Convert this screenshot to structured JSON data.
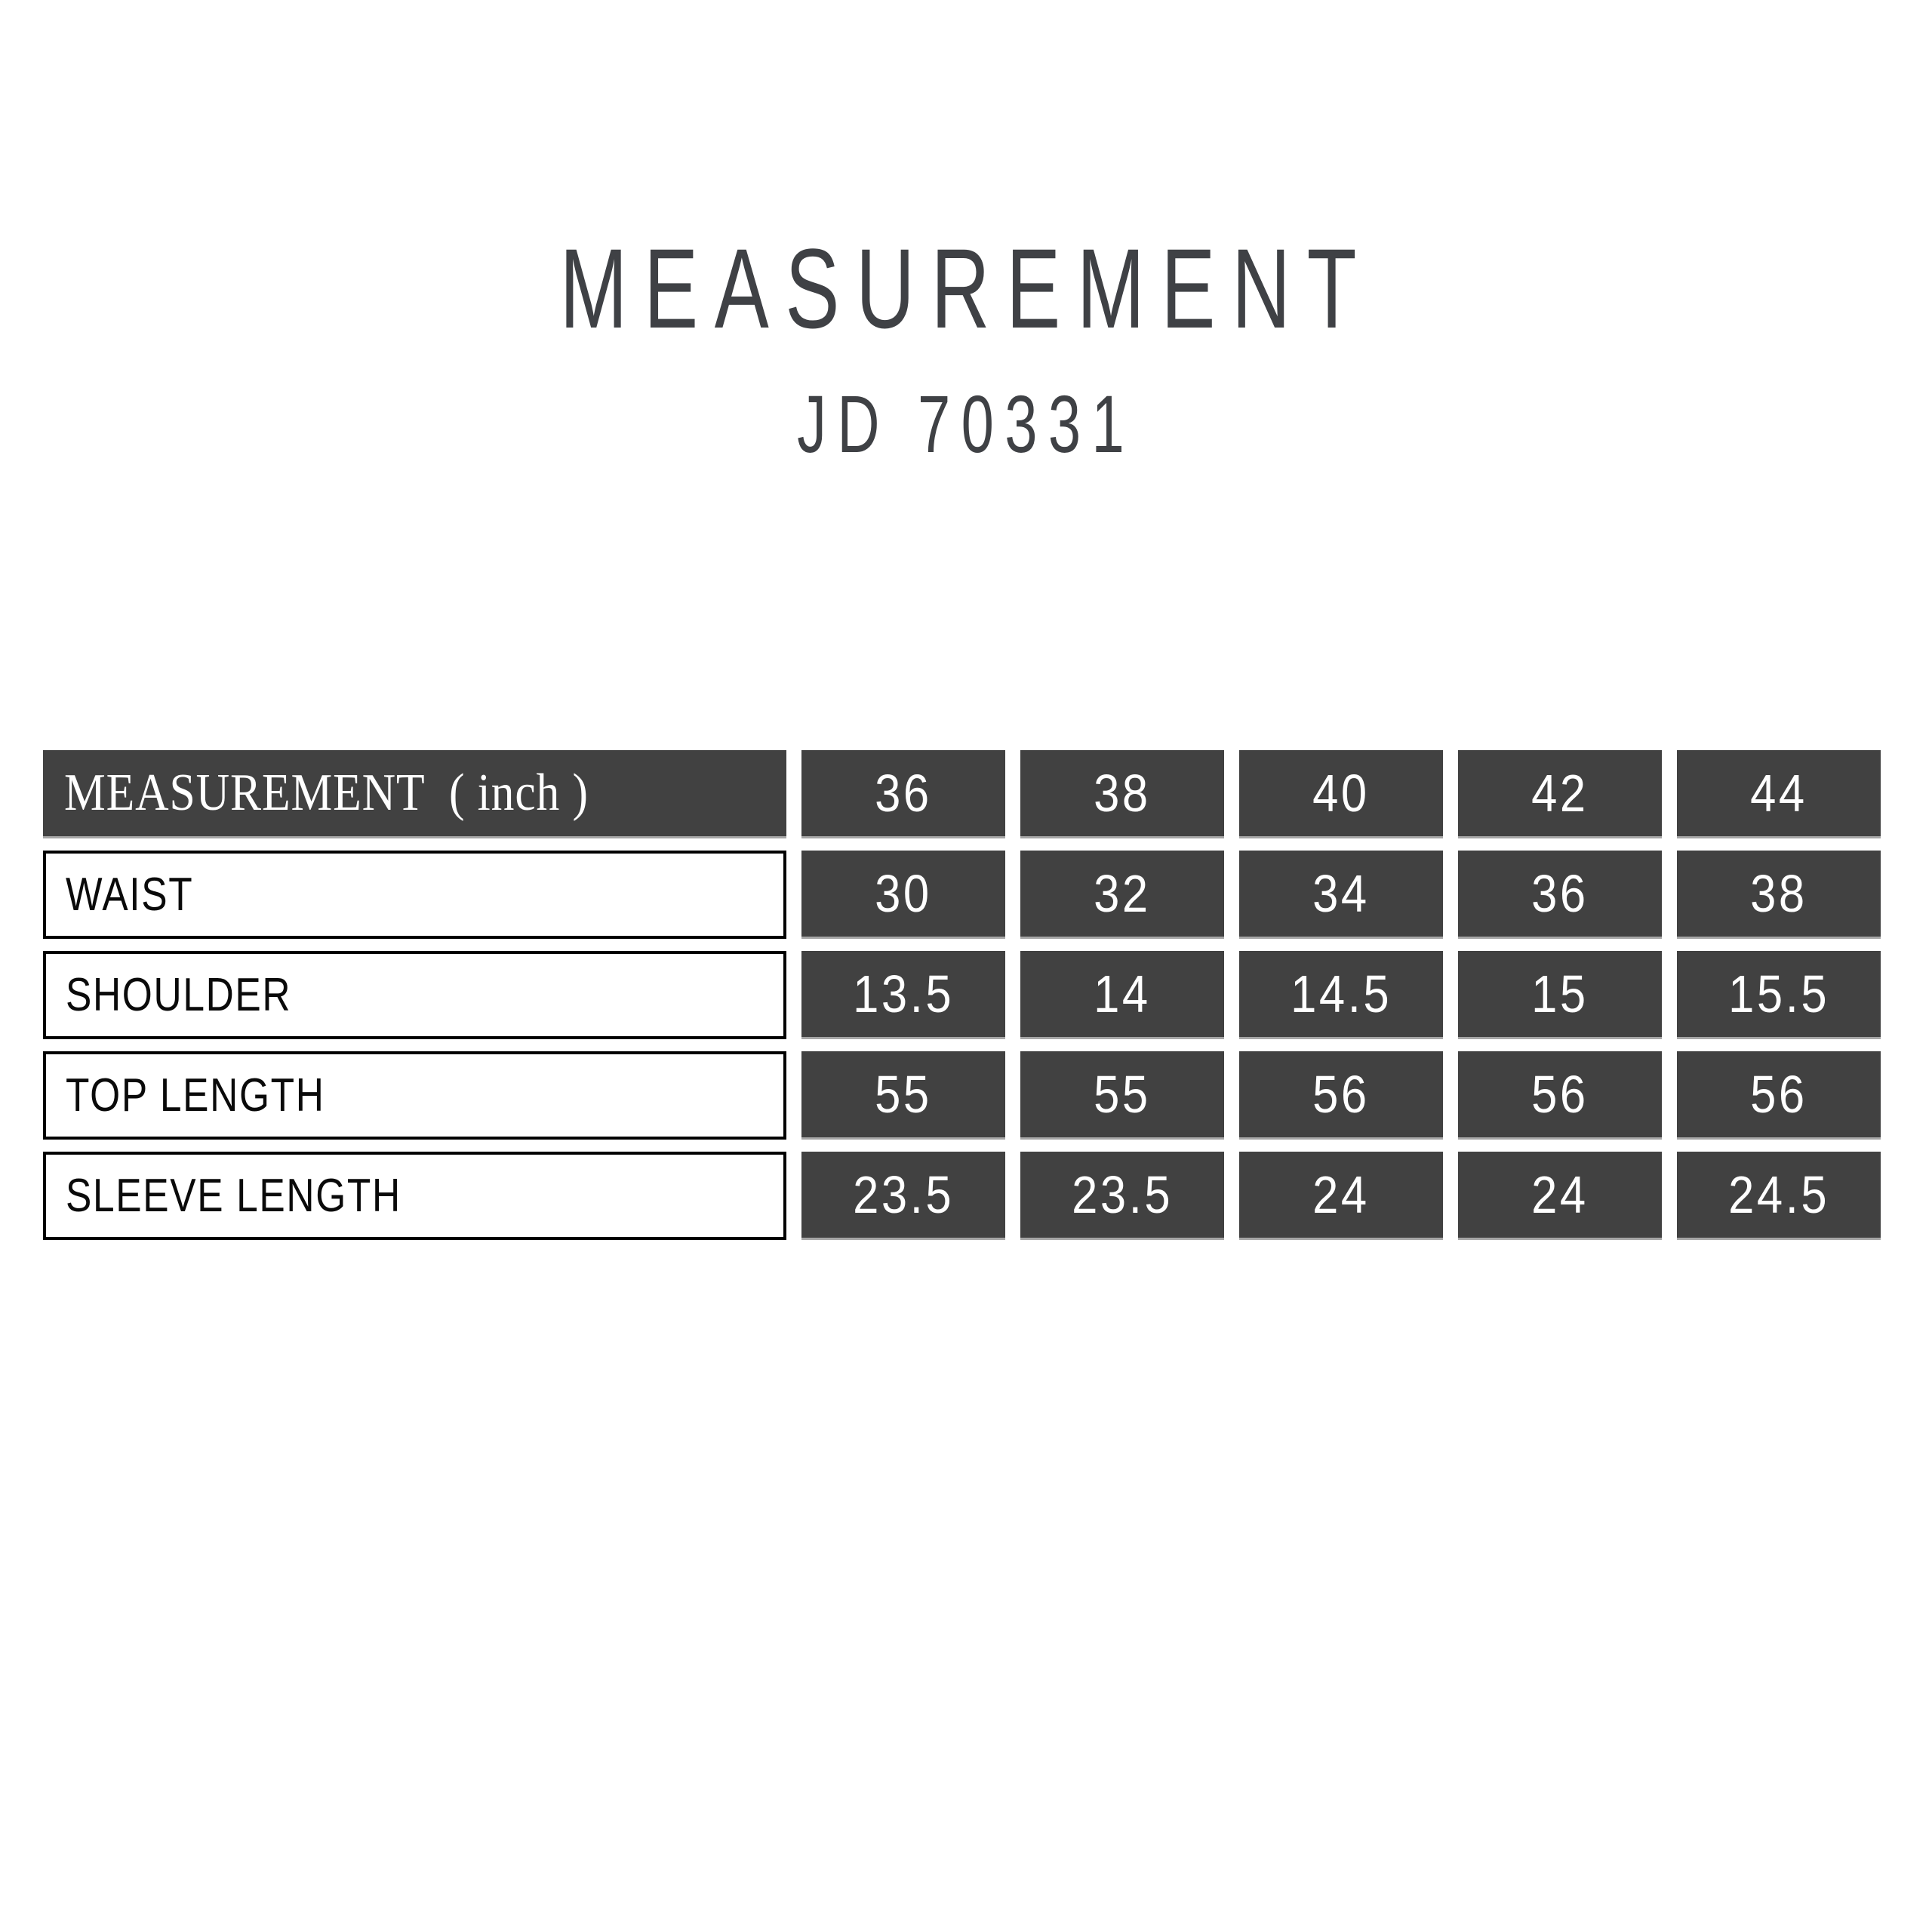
{
  "title": "MEASUREMENT",
  "subtitle": "JD 70331",
  "colors": {
    "page_bg": "#ffffff",
    "dark_cell_bg": "#414141",
    "title_text": "#3f4145",
    "cell_text_light": "#ffffff",
    "label_text": "#0a0a0a",
    "label_cell_border": "#000000",
    "dark_cell_edge": "#a6a6a6"
  },
  "chart_data": {
    "type": "table",
    "title": "MEASUREMENT",
    "subtitle": "JD 70331",
    "unit": "inch",
    "header": {
      "label": "MEASUREMENT  ( inch )",
      "sizes": [
        "36",
        "38",
        "40",
        "42",
        "44"
      ]
    },
    "rows": [
      {
        "label": "WAIST",
        "values": [
          "30",
          "32",
          "34",
          "36",
          "38"
        ]
      },
      {
        "label": "SHOULDER",
        "values": [
          "13.5",
          "14",
          "14.5",
          "15",
          "15.5"
        ]
      },
      {
        "label": "TOP LENGTH",
        "values": [
          "55",
          "55",
          "56",
          "56",
          "56"
        ]
      },
      {
        "label": "SLEEVE LENGTH",
        "values": [
          "23.5",
          "23.5",
          "24",
          "24",
          "24.5"
        ]
      }
    ]
  }
}
